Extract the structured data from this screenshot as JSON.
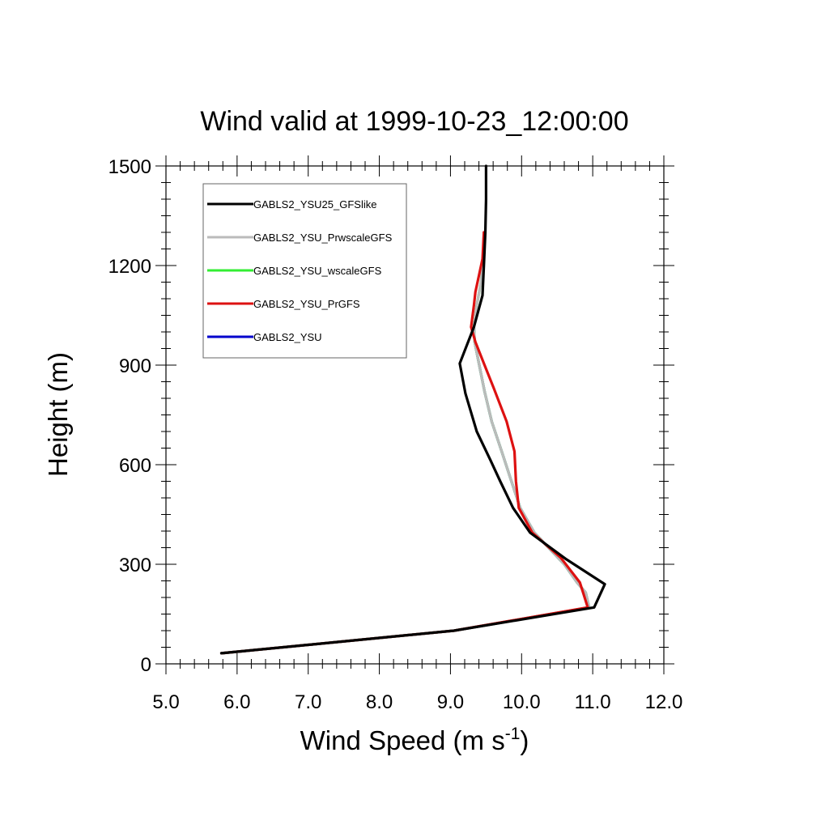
{
  "chart_data": {
    "type": "line",
    "title": "Wind valid at 1999-10-23_12:00:00",
    "xlabel": "Wind Speed (m s",
    "xlabel_superscript": "-1",
    "xlabel_suffix": ")",
    "ylabel": "Height (m)",
    "xlim": [
      5.0,
      12.0
    ],
    "ylim": [
      0,
      1500
    ],
    "xticks": [
      "5.0",
      "6.0",
      "7.0",
      "8.0",
      "9.0",
      "10.0",
      "11.0",
      "12.0"
    ],
    "yticks": [
      "0",
      "300",
      "600",
      "900",
      "1200",
      "1500"
    ],
    "xtick_values": [
      5,
      6,
      7,
      8,
      9,
      10,
      11,
      12
    ],
    "ytick_values": [
      0,
      300,
      600,
      900,
      1200,
      1500
    ],
    "grid": false,
    "legend_position": "top-left",
    "series": [
      {
        "name": "GABLS2_YSU25_GFSlike",
        "color": "#000000",
        "x": [
          5.78,
          9.05,
          11.02,
          11.17,
          10.63,
          10.12,
          9.88,
          9.7,
          9.56,
          9.37,
          9.21,
          9.13,
          9.33,
          9.45,
          9.47,
          9.49,
          9.5,
          9.5
        ],
        "y": [
          32,
          100,
          170,
          240,
          315,
          395,
          470,
          550,
          615,
          700,
          815,
          905,
          1015,
          1110,
          1200,
          1300,
          1400,
          1500
        ]
      },
      {
        "name": "GABLS2_YSU_PrwscaleGFS",
        "color": "#bbbbbb",
        "x": [
          5.78,
          9.05,
          10.95,
          10.9,
          10.78,
          10.6,
          10.18,
          9.98,
          9.85,
          9.72,
          9.58,
          9.48,
          9.4,
          9.34,
          9.33,
          9.37,
          9.43,
          9.46,
          9.47
        ],
        "y": [
          32,
          100,
          170,
          215,
          245,
          300,
          395,
          470,
          555,
          640,
          730,
          820,
          905,
          970,
          1015,
          1080,
          1150,
          1220,
          1300
        ]
      },
      {
        "name": "GABLS2_YSU_wscaleGFS",
        "color": "#33ee33",
        "x": [
          5.78,
          9.05,
          10.95,
          10.9,
          10.78,
          10.6,
          10.18,
          9.98,
          9.85,
          9.72,
          9.58,
          9.48,
          9.4,
          9.34,
          9.33,
          9.37,
          9.43,
          9.46
        ],
        "y": [
          32,
          100,
          170,
          215,
          245,
          300,
          395,
          470,
          555,
          640,
          730,
          820,
          905,
          970,
          1015,
          1080,
          1150,
          1220
        ]
      },
      {
        "name": "GABLS2_YSU_PrGFS",
        "color": "#dd1111",
        "x": [
          5.78,
          9.05,
          10.93,
          10.82,
          10.55,
          10.15,
          9.96,
          9.92,
          9.9,
          9.79,
          9.61,
          9.47,
          9.35,
          9.29,
          9.33,
          9.35,
          9.45,
          9.47
        ],
        "y": [
          32,
          100,
          170,
          245,
          320,
          395,
          470,
          550,
          640,
          730,
          830,
          905,
          970,
          1015,
          1080,
          1120,
          1220,
          1300
        ]
      },
      {
        "name": "GABLS2_YSU",
        "color": "#0000cc",
        "x": [
          5.78,
          9.05,
          10.95,
          10.9,
          10.78,
          10.6,
          10.18,
          9.98,
          9.85,
          9.72,
          9.58,
          9.48,
          9.4,
          9.34,
          9.33
        ],
        "y": [
          32,
          100,
          170,
          215,
          245,
          300,
          395,
          470,
          555,
          640,
          730,
          820,
          905,
          970,
          1015
        ]
      }
    ],
    "draw_order": [
      4,
      2,
      1,
      3,
      0
    ]
  }
}
